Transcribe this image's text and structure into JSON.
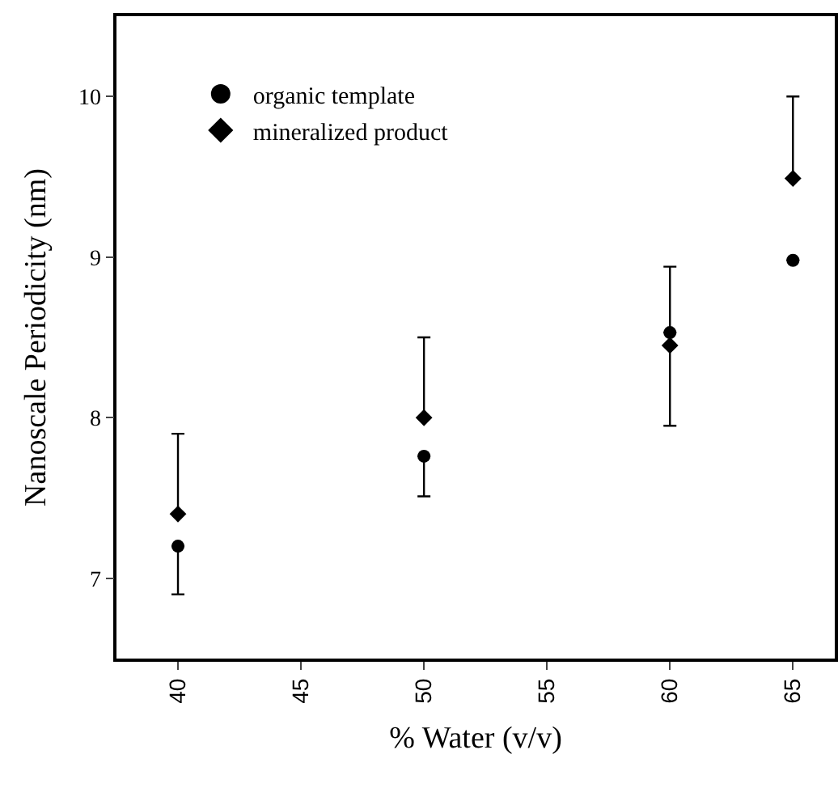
{
  "chart_data": {
    "type": "scatter",
    "xlabel": "% Water (v/v)",
    "ylabel": "Nanoscale Periodicity (nm)",
    "x": [
      40,
      50,
      60,
      65
    ],
    "series": [
      {
        "name": "organic template",
        "color": "#000000",
        "marker": "circle",
        "values": [
          7.2,
          7.76,
          8.53,
          8.98
        ],
        "errors": [
          [
            6.9,
            7.2
          ],
          [
            7.51,
            7.76
          ],
          [
            8.53,
            8.94
          ],
          null
        ]
      },
      {
        "name": "mineralized product",
        "color": "#000000",
        "marker": "diamond",
        "values": [
          7.4,
          8.0,
          8.45,
          9.49
        ],
        "errors": [
          [
            7.4,
            7.9
          ],
          [
            8.0,
            8.5
          ],
          [
            7.95,
            8.45
          ],
          [
            9.49,
            10.0
          ]
        ]
      }
    ],
    "xlim": [
      37.5,
      66.7
    ],
    "xticks": [
      40,
      45,
      50,
      55,
      60,
      65
    ],
    "ylim": [
      6.5,
      10.5
    ],
    "yticks": [
      7,
      8,
      9,
      10
    ],
    "legend": "top left"
  }
}
